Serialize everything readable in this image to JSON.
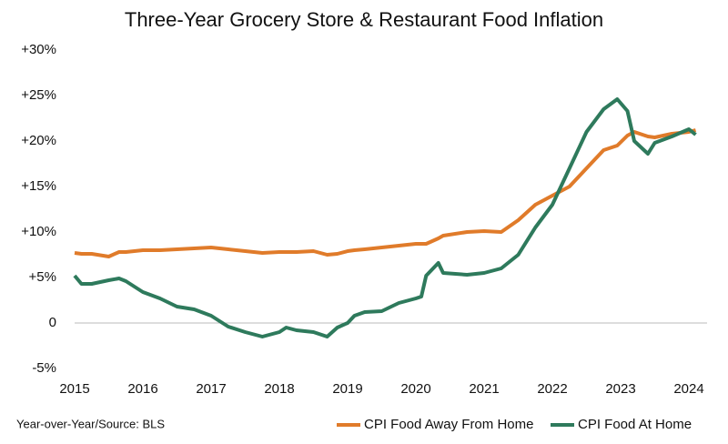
{
  "chart_data": {
    "type": "line",
    "title": "Three-Year Grocery Store & Restaurant Food Inflation",
    "note": "Year-over-Year/Source: BLS",
    "x": [
      2015,
      2015.1,
      2015.25,
      2015.5,
      2015.65,
      2015.75,
      2016,
      2016.25,
      2016.5,
      2016.75,
      2017,
      2017.25,
      2017.5,
      2017.75,
      2018,
      2018.1,
      2018.25,
      2018.5,
      2018.7,
      2018.85,
      2019,
      2019.1,
      2019.25,
      2019.5,
      2019.75,
      2020,
      2020.08,
      2020.15,
      2020.33,
      2020.4,
      2020.75,
      2021,
      2021.25,
      2021.5,
      2021.75,
      2022,
      2022.25,
      2022.5,
      2022.75,
      2022.95,
      2023.1,
      2023.2,
      2023.4,
      2023.5,
      2023.75,
      2024,
      2024.1
    ],
    "series": [
      {
        "name": "CPI Food Away From Home",
        "color": "#e07b2a",
        "values": [
          7.7,
          7.6,
          7.6,
          7.3,
          7.8,
          7.8,
          8.0,
          8.0,
          8.1,
          8.2,
          8.3,
          8.1,
          7.9,
          7.7,
          7.8,
          7.8,
          7.8,
          7.9,
          7.5,
          7.6,
          7.9,
          8.0,
          8.1,
          8.3,
          8.5,
          8.7,
          8.7,
          8.7,
          9.3,
          9.6,
          10.0,
          10.1,
          10.0,
          11.3,
          13.0,
          14.0,
          15.0,
          17.0,
          19.0,
          19.5,
          20.6,
          21.0,
          20.5,
          20.4,
          20.8,
          21.0,
          21.2
        ]
      },
      {
        "name": "CPI Food At Home",
        "color": "#2e7a5c",
        "values": [
          5.2,
          4.3,
          4.3,
          4.7,
          4.9,
          4.6,
          3.4,
          2.7,
          1.8,
          1.5,
          0.8,
          -0.4,
          -1.0,
          -1.5,
          -1.0,
          -0.5,
          -0.8,
          -1.0,
          -1.5,
          -0.5,
          0,
          0.8,
          1.2,
          1.3,
          2.2,
          2.7,
          2.9,
          5.2,
          6.6,
          5.5,
          5.3,
          5.5,
          6.0,
          7.5,
          10.5,
          13.0,
          17.0,
          21.0,
          23.5,
          24.6,
          23.3,
          20.0,
          18.6,
          19.8,
          20.5,
          21.3,
          20.7
        ]
      }
    ],
    "xlim": [
      2015,
      2024
    ],
    "xticks": [
      2015,
      2016,
      2017,
      2018,
      2019,
      2020,
      2021,
      2022,
      2023,
      2024
    ],
    "ylim": [
      -5,
      30
    ],
    "yticks": [
      {
        "value": -5,
        "label": "-5%"
      },
      0,
      {
        "value": 5,
        "label": "+5%"
      },
      {
        "value": 10,
        "label": "+10%"
      },
      {
        "value": 15,
        "label": "+15%"
      },
      {
        "value": 20,
        "label": "+20%"
      },
      {
        "value": 25,
        "label": "+25%"
      },
      {
        "value": 30,
        "label": "+30%"
      }
    ],
    "grid": false,
    "legend": "bottom-right"
  }
}
